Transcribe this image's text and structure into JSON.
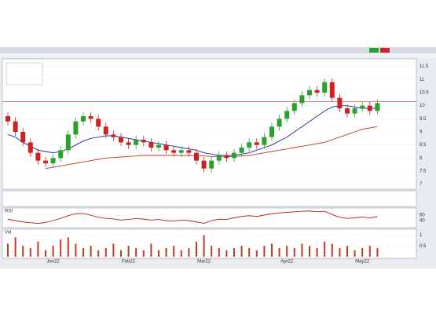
{
  "chart_data": [
    {
      "type": "candlestick",
      "up_color": "#2ca02c",
      "down_color": "#cc2222",
      "categories": [
        null,
        null,
        null,
        null,
        null,
        null,
        "Jan22",
        null,
        null,
        null,
        null,
        null,
        null,
        null,
        null,
        null,
        "Feb22",
        null,
        null,
        null,
        null,
        null,
        null,
        null,
        null,
        null,
        "Mar22",
        null,
        null,
        null,
        null,
        null,
        null,
        null,
        null,
        null,
        null,
        "Apr22",
        null,
        null,
        null,
        null,
        null,
        null,
        null,
        null,
        null,
        "May22",
        null,
        null
      ],
      "open": [
        9.6,
        9.4,
        9.0,
        8.6,
        8.2,
        7.9,
        7.8,
        8.0,
        8.3,
        8.9,
        9.4,
        9.6,
        9.5,
        9.2,
        8.9,
        8.8,
        8.6,
        8.5,
        8.7,
        8.6,
        8.4,
        8.5,
        8.3,
        8.2,
        8.3,
        8.2,
        7.9,
        7.6,
        7.9,
        8.1,
        8.0,
        8.2,
        8.4,
        8.6,
        8.5,
        8.8,
        9.2,
        9.5,
        9.8,
        10.1,
        10.4,
        10.6,
        10.5,
        10.9,
        10.3,
        9.9,
        9.7,
        9.9,
        10.0,
        9.8
      ],
      "high": [
        9.75,
        9.55,
        9.15,
        8.75,
        8.35,
        8.05,
        8.15,
        8.45,
        9.05,
        9.55,
        9.75,
        9.75,
        9.65,
        9.35,
        9.05,
        8.95,
        8.75,
        8.85,
        8.85,
        8.75,
        8.65,
        8.65,
        8.45,
        8.45,
        8.45,
        8.35,
        8.05,
        8.05,
        8.25,
        8.25,
        8.35,
        8.55,
        8.75,
        8.75,
        8.95,
        9.35,
        9.65,
        9.95,
        10.25,
        10.55,
        10.75,
        10.75,
        11.05,
        11.05,
        10.45,
        10.05,
        10.05,
        10.15,
        10.15,
        10.25
      ],
      "low": [
        9.25,
        8.85,
        8.45,
        8.05,
        7.75,
        7.65,
        7.65,
        7.85,
        8.15,
        8.75,
        9.25,
        9.35,
        9.05,
        8.75,
        8.65,
        8.45,
        8.35,
        8.35,
        8.45,
        8.25,
        8.25,
        8.15,
        8.05,
        8.05,
        8.05,
        7.75,
        7.45,
        7.45,
        7.75,
        7.85,
        7.85,
        8.05,
        8.25,
        8.35,
        8.35,
        8.65,
        9.05,
        9.35,
        9.65,
        9.95,
        10.25,
        10.35,
        10.35,
        10.15,
        9.75,
        9.55,
        9.55,
        9.75,
        9.65,
        9.65
      ],
      "close": [
        9.4,
        9.0,
        8.6,
        8.2,
        7.9,
        7.8,
        8.0,
        8.3,
        8.9,
        9.4,
        9.6,
        9.5,
        9.2,
        8.9,
        8.8,
        8.6,
        8.5,
        8.7,
        8.6,
        8.4,
        8.5,
        8.3,
        8.2,
        8.3,
        8.2,
        7.9,
        7.6,
        7.9,
        8.1,
        8.0,
        8.2,
        8.4,
        8.6,
        8.5,
        8.8,
        9.2,
        9.5,
        9.8,
        10.1,
        10.4,
        10.6,
        10.5,
        10.9,
        10.3,
        9.9,
        9.7,
        9.9,
        10.0,
        9.8,
        10.1
      ],
      "overlays": [
        {
          "color": "#1a2a9a",
          "values": [
            8.9,
            8.8,
            8.6,
            8.45,
            8.3,
            8.25,
            8.2,
            8.25,
            8.35,
            8.5,
            8.65,
            8.75,
            8.8,
            8.85,
            8.85,
            8.8,
            8.75,
            8.7,
            8.65,
            8.6,
            8.55,
            8.5,
            8.45,
            8.4,
            8.35,
            8.3,
            8.2,
            8.15,
            8.1,
            8.1,
            8.1,
            8.15,
            8.2,
            8.3,
            8.4,
            8.5,
            8.65,
            8.8,
            9.0,
            9.2,
            9.4,
            9.6,
            9.8,
            9.95,
            10.0,
            10.0,
            9.95,
            9.9,
            9.9,
            9.9
          ]
        },
        {
          "color": "#c0392b",
          "values": [
            null,
            null,
            null,
            null,
            null,
            7.6,
            7.65,
            7.7,
            7.75,
            7.8,
            7.85,
            7.9,
            7.95,
            8.0,
            8.02,
            8.04,
            8.06,
            8.08,
            8.1,
            8.1,
            8.1,
            8.1,
            8.1,
            8.1,
            8.1,
            8.1,
            8.08,
            8.06,
            8.05,
            8.05,
            8.06,
            8.08,
            8.1,
            8.15,
            8.2,
            8.25,
            8.3,
            8.35,
            8.4,
            8.45,
            8.5,
            8.55,
            8.6,
            8.7,
            8.8,
            8.9,
            9.0,
            9.1,
            9.15,
            9.2
          ]
        }
      ],
      "price_line": 10.15,
      "price_line_color": "#d62728",
      "ylim": [
        6.9,
        11.7
      ],
      "yticks": [
        7,
        7.5,
        8,
        8.5,
        9,
        9.5,
        10,
        10.5,
        11,
        11.5
      ]
    },
    {
      "type": "line",
      "title": "RSI",
      "color": "#b22222",
      "values": [
        45,
        40,
        35,
        32,
        30,
        33,
        40,
        48,
        58,
        65,
        66,
        60,
        52,
        48,
        46,
        42,
        44,
        48,
        45,
        42,
        44,
        40,
        38,
        42,
        40,
        35,
        30,
        40,
        45,
        44,
        50,
        55,
        58,
        55,
        60,
        65,
        68,
        70,
        72,
        74,
        75,
        72,
        74,
        62,
        52,
        48,
        50,
        53,
        49,
        55
      ],
      "ylim": [
        20,
        80
      ],
      "yticks": [
        40,
        60
      ]
    },
    {
      "type": "bar",
      "title": "Vol",
      "color": "#c0392b",
      "values": [
        0.6,
        0.9,
        0.5,
        0.4,
        0.7,
        0.3,
        0.5,
        0.8,
        0.9,
        0.6,
        0.4,
        0.5,
        0.3,
        0.4,
        0.6,
        0.3,
        0.5,
        0.4,
        0.3,
        0.6,
        0.3,
        0.4,
        0.5,
        0.3,
        0.4,
        0.7,
        1.0,
        0.5,
        0.4,
        0.3,
        0.4,
        0.5,
        0.4,
        0.3,
        0.5,
        0.6,
        0.4,
        0.5,
        0.4,
        0.6,
        0.5,
        0.4,
        0.7,
        0.6,
        0.4,
        0.5,
        0.3,
        0.4,
        0.5,
        0.4
      ],
      "ylim": [
        0,
        1.2
      ],
      "yticks": [
        0.5,
        1
      ]
    }
  ]
}
